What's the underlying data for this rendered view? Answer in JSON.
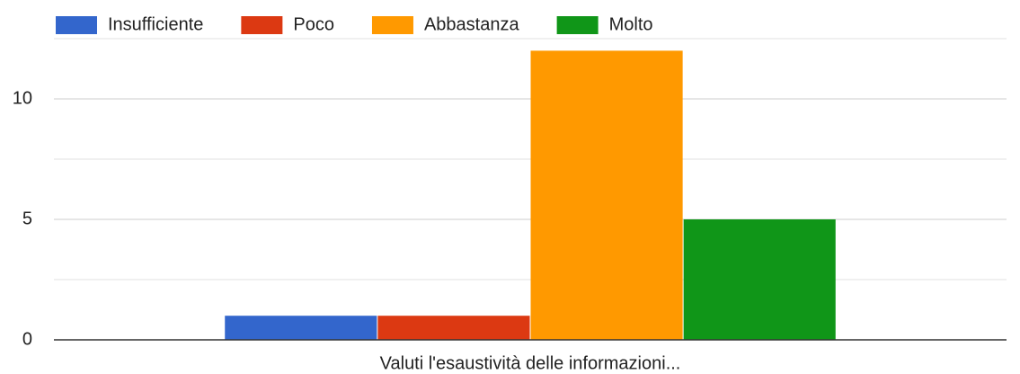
{
  "chart_data": {
    "type": "bar",
    "categories": [
      "Valuti l'esaustività delle informazioni..."
    ],
    "series": [
      {
        "name": "Insufficiente",
        "color": "#3366cc",
        "values": [
          1
        ]
      },
      {
        "name": "Poco",
        "color": "#dc3912",
        "values": [
          1
        ]
      },
      {
        "name": "Abbastanza",
        "color": "#ff9900",
        "values": [
          12
        ]
      },
      {
        "name": "Molto",
        "color": "#109618",
        "values": [
          5
        ]
      }
    ],
    "ylim": [
      0,
      12.5
    ],
    "yticks": [
      0,
      5,
      10
    ],
    "minor_yticks": [
      2.5,
      7.5,
      12.5
    ],
    "grid": true,
    "legend": "top"
  }
}
